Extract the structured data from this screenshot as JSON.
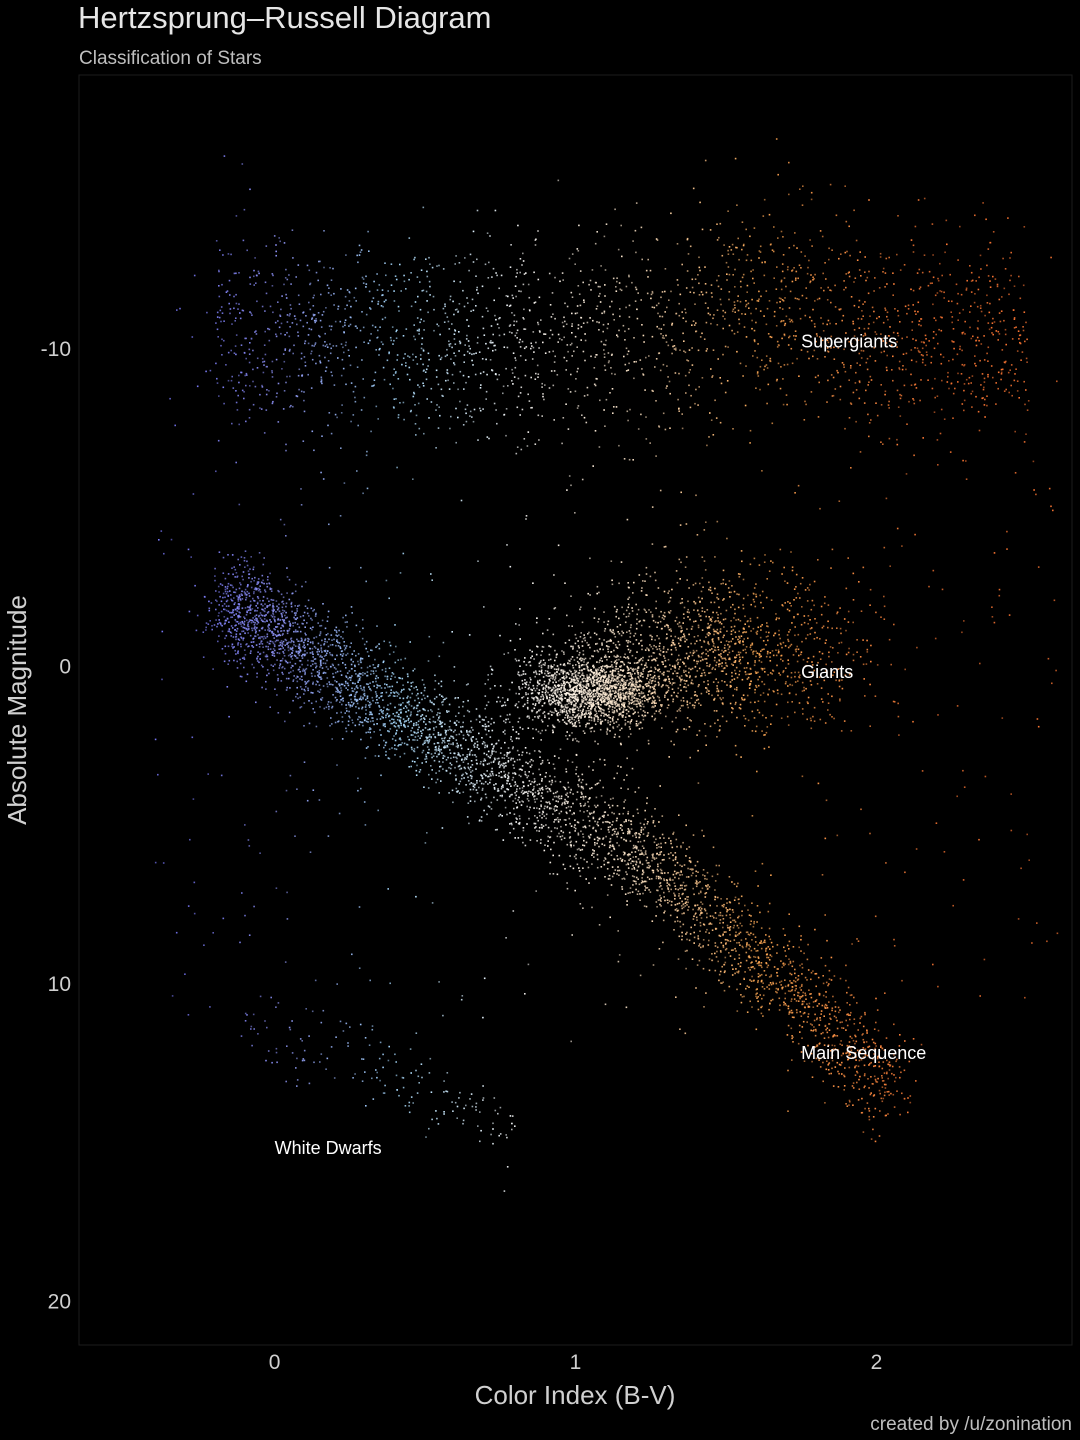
{
  "chart_data": {
    "type": "scatter",
    "title": "Hertzsprung–Russell Diagram",
    "subtitle": "Classification of Stars",
    "xlabel": "Color Index (B-V)",
    "ylabel": "Absolute Magnitude",
    "xlim": [
      -0.65,
      2.65
    ],
    "ylim": [
      21.4,
      -18.6
    ],
    "y_reversed": true,
    "x_ticks": [
      0,
      1,
      2
    ],
    "y_ticks": [
      -10,
      0,
      10,
      20
    ],
    "grid": false,
    "background": "#000000",
    "annotations": [
      {
        "text": "Supergiants",
        "x": 1.75,
        "y": -10.2
      },
      {
        "text": "Giants",
        "x": 1.75,
        "y": 0.2
      },
      {
        "text": "Main Sequence",
        "x": 1.75,
        "y": 12.2
      },
      {
        "text": "White Dwarfs",
        "x": 0.0,
        "y": 15.2
      }
    ],
    "color_scale": [
      {
        "bv": -0.3,
        "color": "#7b7bff"
      },
      {
        "bv": 0.0,
        "color": "#8a8ef0"
      },
      {
        "bv": 0.4,
        "color": "#a8dcff"
      },
      {
        "bv": 0.8,
        "color": "#ffffff"
      },
      {
        "bv": 1.2,
        "color": "#ffe6c8"
      },
      {
        "bv": 1.6,
        "color": "#ffaa55"
      },
      {
        "bv": 2.2,
        "color": "#ff7733"
      }
    ],
    "density_regions": [
      {
        "name": "Supergiants",
        "bv_range": [
          -0.2,
          2.5
        ],
        "mag_range": [
          -14,
          -7.5
        ]
      },
      {
        "name": "Giants",
        "bv_center": 1.05,
        "mag_center": 0.8
      },
      {
        "name": "Main Sequence",
        "bv_range": [
          -0.2,
          2.1
        ],
        "mag_range": [
          -1,
          17
        ]
      },
      {
        "name": "White Dwarfs",
        "bv_range": [
          -0.1,
          0.9
        ],
        "mag_range": [
          11,
          15
        ]
      }
    ]
  },
  "credit": "created by /u/zonination"
}
